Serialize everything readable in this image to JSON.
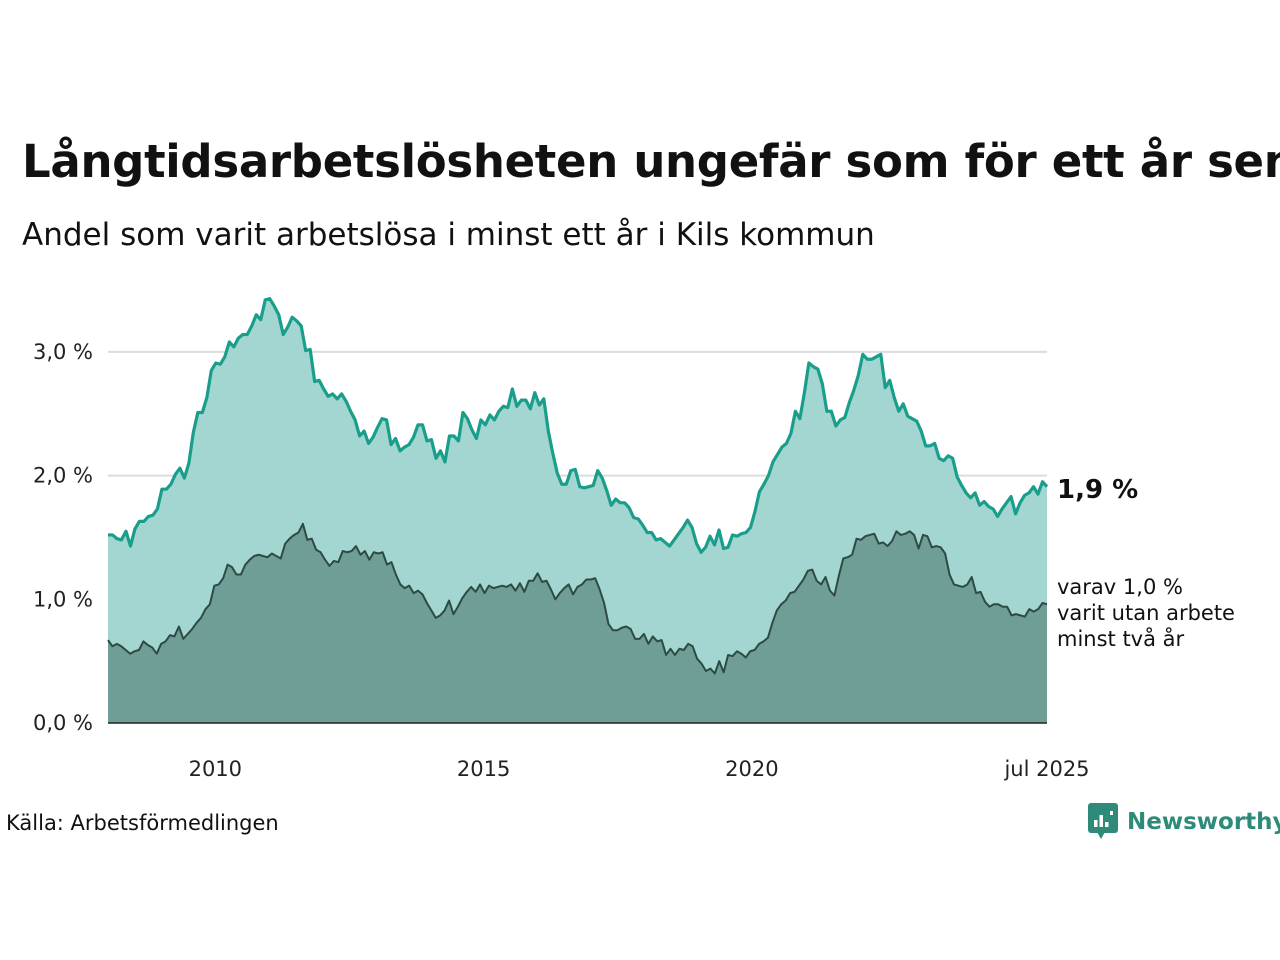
{
  "title": "Långtidsarbetslösheten ungefär som för ett år sen",
  "subtitle": "Andel som varit arbetslösa i minst ett år i Kils kommun",
  "source": "Källa: Arbetsförmedlingen",
  "brand": "Newsworthy",
  "end_label": "1,9 %",
  "note_lines": [
    "varav 1,0 %",
    "varit utan arbete",
    "minst två år"
  ],
  "colors": {
    "upper_fill": "#a3d6d0",
    "upper_line": "#1a9e8c",
    "lower_fill": "#6f9e96",
    "lower_line": "#2e4a44",
    "grid": "#dcdcdc",
    "brand": "#2e8b7a"
  },
  "chart_data": {
    "type": "area",
    "x_start": "2008-01",
    "x_end": "2025-07",
    "x_step": "month",
    "xticks": [
      {
        "date": "2010-01",
        "label": "2010"
      },
      {
        "date": "2015-01",
        "label": "2015"
      },
      {
        "date": "2020-01",
        "label": "2020"
      },
      {
        "date": "2025-07",
        "label": "jul 2025"
      }
    ],
    "ylim": [
      0,
      3.5
    ],
    "yticks": [
      {
        "value": 0,
        "label": "0,0 %"
      },
      {
        "value": 1,
        "label": "1,0 %"
      },
      {
        "value": 2,
        "label": "2,0 %"
      },
      {
        "value": 3,
        "label": "3,0 %"
      }
    ],
    "grid": true,
    "series": [
      {
        "values": [
          1.52,
          1.52,
          1.49,
          1.48,
          1.55,
          1.43,
          1.57,
          1.63,
          1.63,
          1.67,
          1.68,
          1.73,
          1.89,
          1.89,
          1.93,
          2.01,
          2.06,
          1.98,
          2.1,
          2.35,
          2.51,
          2.51,
          2.63,
          2.85,
          2.91,
          2.9,
          2.96,
          3.08,
          3.04,
          3.11,
          3.14,
          3.14,
          3.21,
          3.3,
          3.26,
          3.42,
          3.43,
          3.37,
          3.3,
          3.14,
          3.2,
          3.28,
          3.25,
          3.21,
          3.01,
          3.02,
          2.76,
          2.77,
          2.7,
          2.64,
          2.66,
          2.62,
          2.66,
          2.6,
          2.52,
          2.45,
          2.32,
          2.36,
          2.26,
          2.31,
          2.39,
          2.46,
          2.45,
          2.25,
          2.3,
          2.2,
          2.23,
          2.25,
          2.31,
          2.41,
          2.41,
          2.28,
          2.29,
          2.14,
          2.2,
          2.11,
          2.32,
          2.32,
          2.28,
          2.51,
          2.46,
          2.37,
          2.3,
          2.45,
          2.41,
          2.49,
          2.45,
          2.52,
          2.56,
          2.55,
          2.7,
          2.56,
          2.61,
          2.61,
          2.54,
          2.67,
          2.57,
          2.62,
          2.36,
          2.18,
          2.02,
          1.93,
          1.93,
          2.04,
          2.05,
          1.91,
          1.9,
          1.91,
          1.92,
          2.04,
          1.98,
          1.88,
          1.76,
          1.81,
          1.78,
          1.78,
          1.74,
          1.66,
          1.65,
          1.6,
          1.54,
          1.54,
          1.48,
          1.49,
          1.46,
          1.43,
          1.48,
          1.53,
          1.58,
          1.64,
          1.58,
          1.45,
          1.38,
          1.42,
          1.51,
          1.44,
          1.56,
          1.41,
          1.42,
          1.52,
          1.51,
          1.53,
          1.54,
          1.58,
          1.71,
          1.87,
          1.93,
          2.0,
          2.11,
          2.17,
          2.23,
          2.26,
          2.34,
          2.52,
          2.46,
          2.67,
          2.91,
          2.88,
          2.86,
          2.74,
          2.52,
          2.52,
          2.4,
          2.45,
          2.47,
          2.59,
          2.69,
          2.81,
          2.98,
          2.94,
          2.94,
          2.96,
          2.98,
          2.71,
          2.77,
          2.63,
          2.52,
          2.58,
          2.48,
          2.46,
          2.44,
          2.36,
          2.24,
          2.24,
          2.26,
          2.14,
          2.12,
          2.16,
          2.14,
          1.99,
          1.92,
          1.86,
          1.82,
          1.86,
          1.76,
          1.79,
          1.75,
          1.73,
          1.67,
          1.73,
          1.78,
          1.83,
          1.69,
          1.78,
          1.84,
          1.86,
          1.91,
          1.85,
          1.95,
          1.91
        ]
      },
      {
        "values": [
          0.67,
          0.62,
          0.64,
          0.62,
          0.59,
          0.56,
          0.58,
          0.59,
          0.66,
          0.63,
          0.61,
          0.56,
          0.64,
          0.66,
          0.71,
          0.7,
          0.78,
          0.68,
          0.72,
          0.76,
          0.81,
          0.85,
          0.92,
          0.96,
          1.11,
          1.12,
          1.17,
          1.28,
          1.26,
          1.2,
          1.2,
          1.28,
          1.32,
          1.35,
          1.36,
          1.35,
          1.34,
          1.37,
          1.35,
          1.33,
          1.45,
          1.49,
          1.52,
          1.54,
          1.61,
          1.48,
          1.49,
          1.4,
          1.38,
          1.32,
          1.27,
          1.31,
          1.3,
          1.39,
          1.38,
          1.39,
          1.43,
          1.36,
          1.39,
          1.32,
          1.38,
          1.37,
          1.38,
          1.28,
          1.3,
          1.2,
          1.12,
          1.09,
          1.11,
          1.05,
          1.07,
          1.04,
          0.97,
          0.91,
          0.85,
          0.87,
          0.91,
          0.99,
          0.88,
          0.94,
          1.01,
          1.06,
          1.1,
          1.06,
          1.12,
          1.05,
          1.11,
          1.09,
          1.1,
          1.11,
          1.1,
          1.12,
          1.07,
          1.13,
          1.06,
          1.15,
          1.15,
          1.21,
          1.14,
          1.15,
          1.08,
          1.0,
          1.05,
          1.09,
          1.12,
          1.04,
          1.1,
          1.12,
          1.16,
          1.16,
          1.17,
          1.08,
          0.97,
          0.8,
          0.75,
          0.75,
          0.77,
          0.78,
          0.76,
          0.68,
          0.68,
          0.72,
          0.64,
          0.7,
          0.66,
          0.67,
          0.55,
          0.6,
          0.55,
          0.6,
          0.59,
          0.64,
          0.62,
          0.52,
          0.48,
          0.42,
          0.44,
          0.4,
          0.5,
          0.41,
          0.55,
          0.54,
          0.58,
          0.56,
          0.53,
          0.58,
          0.59,
          0.64,
          0.66,
          0.69,
          0.81,
          0.91,
          0.96,
          0.99,
          1.05,
          1.06,
          1.11,
          1.16,
          1.23,
          1.24,
          1.15,
          1.12,
          1.18,
          1.07,
          1.03,
          1.19,
          1.33,
          1.34,
          1.36,
          1.49,
          1.48,
          1.51,
          1.52,
          1.53,
          1.45,
          1.46,
          1.43,
          1.47,
          1.55,
          1.52,
          1.53,
          1.55,
          1.52,
          1.41,
          1.52,
          1.51,
          1.42,
          1.43,
          1.42,
          1.37,
          1.2,
          1.12,
          1.11,
          1.1,
          1.12,
          1.18,
          1.05,
          1.06,
          0.98,
          0.94,
          0.96,
          0.96,
          0.94,
          0.94,
          0.87,
          0.88,
          0.87,
          0.86,
          0.92,
          0.9,
          0.92,
          0.97,
          0.96
        ]
      }
    ]
  }
}
